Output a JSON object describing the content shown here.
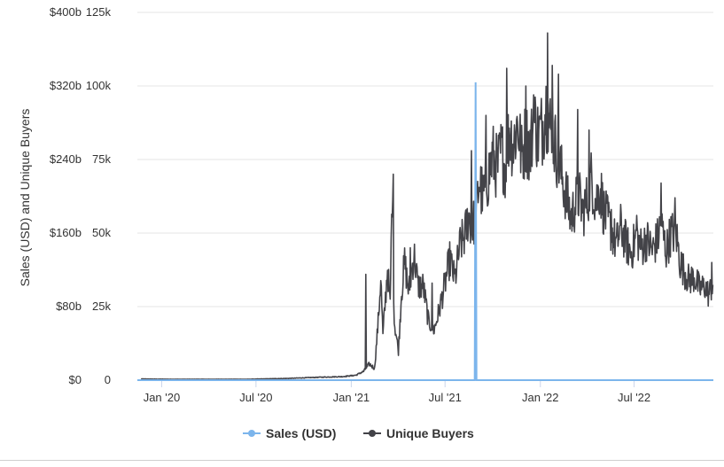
{
  "chart_data": {
    "type": "line",
    "title": "",
    "ylabel": "Sales (USD) and Unique Buyers",
    "xlabel": "",
    "x_range": [
      "2019-11-15",
      "2022-12-01"
    ],
    "x_ticks": [
      {
        "date": "2020-01-01",
        "label": "Jan '20"
      },
      {
        "date": "2020-07-01",
        "label": "Jul '20"
      },
      {
        "date": "2021-01-01",
        "label": "Jan '21"
      },
      {
        "date": "2021-07-01",
        "label": "Jul '21"
      },
      {
        "date": "2022-01-01",
        "label": "Jan '22"
      },
      {
        "date": "2022-07-01",
        "label": "Jul '22"
      }
    ],
    "y_left": {
      "ylim": [
        0,
        400000000000
      ],
      "ticks": [
        {
          "value": 0,
          "label": "$0"
        },
        {
          "value": 80000000000,
          "label": "$80b"
        },
        {
          "value": 160000000000,
          "label": "$160b"
        },
        {
          "value": 240000000000,
          "label": "$240b"
        },
        {
          "value": 320000000000,
          "label": "$320b"
        },
        {
          "value": 400000000000,
          "label": "$400b"
        }
      ]
    },
    "y_right": {
      "ylim": [
        0,
        125000
      ],
      "ticks": [
        {
          "value": 0,
          "label": "0"
        },
        {
          "value": 25000,
          "label": "25k"
        },
        {
          "value": 50000,
          "label": "50k"
        },
        {
          "value": 75000,
          "label": "75k"
        },
        {
          "value": 100000,
          "label": "100k"
        },
        {
          "value": 125000,
          "label": "125k"
        }
      ]
    },
    "grid": true,
    "legend_position": "bottom-center",
    "series": [
      {
        "name": "Sales (USD)",
        "color": "#7cb5ec",
        "axis": "left",
        "baseline_value": 0,
        "spike": {
          "date": "2021-08-29",
          "value": 324000000000
        }
      },
      {
        "name": "Unique Buyers",
        "color": "#434348",
        "axis": "right",
        "points": [
          [
            "2019-11-22",
            400
          ],
          [
            "2020-01-15",
            300
          ],
          [
            "2020-04-01",
            300
          ],
          [
            "2020-06-15",
            300
          ],
          [
            "2020-09-01",
            600
          ],
          [
            "2020-11-01",
            1000
          ],
          [
            "2020-12-15",
            1200
          ],
          [
            "2021-01-10",
            1700
          ],
          [
            "2021-01-25",
            3000
          ],
          [
            "2021-02-05",
            5500
          ],
          [
            "2021-02-15",
            4000
          ],
          [
            "2021-02-22",
            20000
          ],
          [
            "2021-02-27",
            35000
          ],
          [
            "2021-03-03",
            15000
          ],
          [
            "2021-03-12",
            38000
          ],
          [
            "2021-03-17",
            25000
          ],
          [
            "2021-03-21",
            65000
          ],
          [
            "2021-03-25",
            20000
          ],
          [
            "2021-04-02",
            10000
          ],
          [
            "2021-04-08",
            30000
          ],
          [
            "2021-04-14",
            40000
          ],
          [
            "2021-04-22",
            30000
          ],
          [
            "2021-05-02",
            43000
          ],
          [
            "2021-05-10",
            32000
          ],
          [
            "2021-05-20",
            32000
          ],
          [
            "2021-05-30",
            20000
          ],
          [
            "2021-06-10",
            17000
          ],
          [
            "2021-06-20",
            24000
          ],
          [
            "2021-07-01",
            33000
          ],
          [
            "2021-07-10",
            41000
          ],
          [
            "2021-07-20",
            34000
          ],
          [
            "2021-07-30",
            46000
          ],
          [
            "2021-08-08",
            49000
          ],
          [
            "2021-08-15",
            56000
          ],
          [
            "2021-08-22",
            52000
          ],
          [
            "2021-08-30",
            56000
          ],
          [
            "2021-09-05",
            68000
          ],
          [
            "2021-09-12",
            62000
          ],
          [
            "2021-09-22",
            69000
          ],
          [
            "2021-10-01",
            76000
          ],
          [
            "2021-10-10",
            72000
          ],
          [
            "2021-10-18",
            78000
          ],
          [
            "2021-10-26",
            72000
          ],
          [
            "2021-11-02",
            85000
          ],
          [
            "2021-11-10",
            80000
          ],
          [
            "2021-11-18",
            88000
          ],
          [
            "2021-11-26",
            76000
          ],
          [
            "2021-12-04",
            83000
          ],
          [
            "2021-12-12",
            78000
          ],
          [
            "2021-12-20",
            88000
          ],
          [
            "2021-12-28",
            83000
          ],
          [
            "2022-01-05",
            86000
          ],
          [
            "2022-01-12",
            93000
          ],
          [
            "2022-01-20",
            86000
          ],
          [
            "2022-01-28",
            81000
          ],
          [
            "2022-02-05",
            75000
          ],
          [
            "2022-02-13",
            68000
          ],
          [
            "2022-02-21",
            62000
          ],
          [
            "2022-03-01",
            55000
          ],
          [
            "2022-03-08",
            59000
          ],
          [
            "2022-03-16",
            63000
          ],
          [
            "2022-03-24",
            57000
          ],
          [
            "2022-04-01",
            61000
          ],
          [
            "2022-04-10",
            69000
          ],
          [
            "2022-04-18",
            60000
          ],
          [
            "2022-04-26",
            66000
          ],
          [
            "2022-05-04",
            57000
          ],
          [
            "2022-05-12",
            54000
          ],
          [
            "2022-05-20",
            50000
          ],
          [
            "2022-05-28",
            46000
          ],
          [
            "2022-06-05",
            52000
          ],
          [
            "2022-06-15",
            47000
          ],
          [
            "2022-06-25",
            43000
          ],
          [
            "2022-07-05",
            49000
          ],
          [
            "2022-07-15",
            45000
          ],
          [
            "2022-07-25",
            48000
          ],
          [
            "2022-08-05",
            44000
          ],
          [
            "2022-08-15",
            48000
          ],
          [
            "2022-08-22",
            53000
          ],
          [
            "2022-09-01",
            44000
          ],
          [
            "2022-09-10",
            50000
          ],
          [
            "2022-09-20",
            50000
          ],
          [
            "2022-09-28",
            40000
          ],
          [
            "2022-10-06",
            37000
          ],
          [
            "2022-10-15",
            34000
          ],
          [
            "2022-10-25",
            35000
          ],
          [
            "2022-11-05",
            31000
          ],
          [
            "2022-11-15",
            32000
          ],
          [
            "2022-11-22",
            29000
          ],
          [
            "2022-11-30",
            33000
          ]
        ],
        "peaks": [
          [
            "2021-03-23",
            70000
          ],
          [
            "2021-01-29",
            36000
          ],
          [
            "2021-04-25",
            45000
          ],
          [
            "2021-08-21",
            78000
          ],
          [
            "2021-10-28",
            106000
          ],
          [
            "2021-12-04",
            100000
          ],
          [
            "2021-12-19",
            97000
          ],
          [
            "2022-01-15",
            118000
          ],
          [
            "2022-01-24",
            107000
          ],
          [
            "2022-02-05",
            104000
          ],
          [
            "2022-03-14",
            92000
          ],
          [
            "2022-04-05",
            85000
          ],
          [
            "2022-08-22",
            67000
          ],
          [
            "2022-09-18",
            62000
          ],
          [
            "2022-11-28",
            40000
          ],
          [
            "2021-09-18",
            90000
          ],
          [
            "2021-07-12",
            44000
          ],
          [
            "2021-06-06",
            33000
          ],
          [
            "2022-05-18",
            58000
          ],
          [
            "2022-07-06",
            56000
          ]
        ]
      }
    ]
  }
}
